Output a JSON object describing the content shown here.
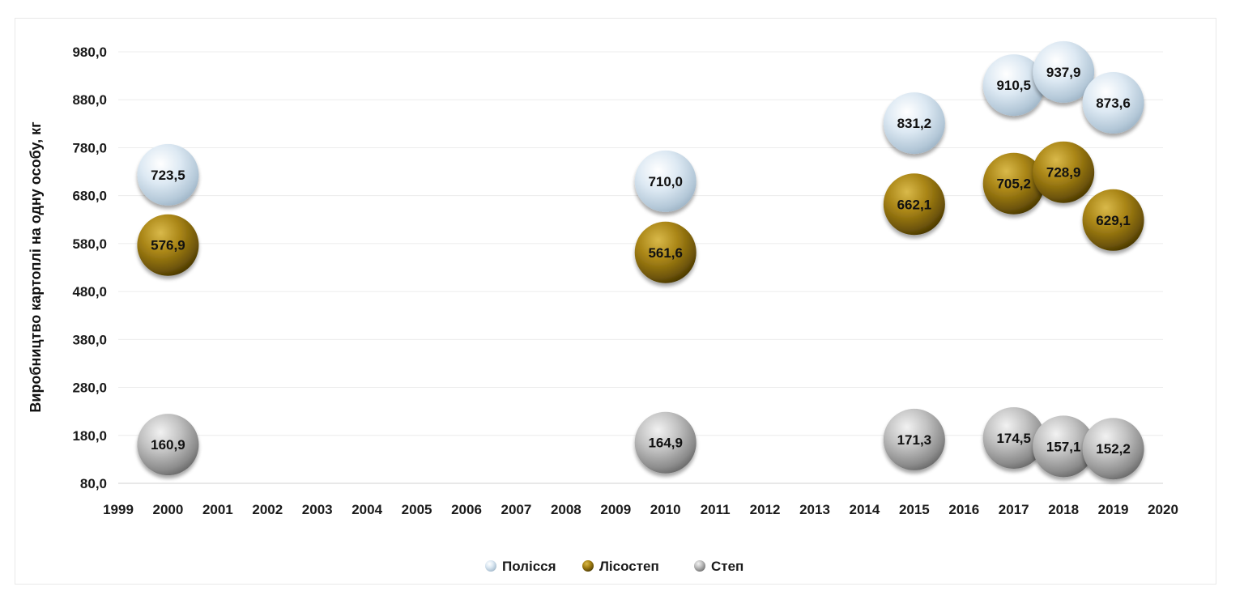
{
  "chart_data": {
    "type": "scatter",
    "title": "",
    "xlabel": "",
    "ylabel": "Виробництво картоплі на одну особу, кг",
    "xlim": [
      1999,
      2020
    ],
    "ylim": [
      80,
      980
    ],
    "x_ticks": [
      "1999",
      "2000",
      "2001",
      "2002",
      "2003",
      "2004",
      "2005",
      "2006",
      "2007",
      "2008",
      "2009",
      "2010",
      "2011",
      "2012",
      "2013",
      "2014",
      "2015",
      "2016",
      "2017",
      "2018",
      "2019",
      "2020"
    ],
    "y_ticks": [
      "80,0",
      "180,0",
      "280,0",
      "380,0",
      "480,0",
      "580,0",
      "680,0",
      "780,0",
      "880,0",
      "980,0"
    ],
    "grid": true,
    "legend_position": "bottom",
    "series": [
      {
        "name": "Полісся",
        "color": "#cfe0ee",
        "points": [
          {
            "x": 2000,
            "y": 723.5,
            "label": "723,5"
          },
          {
            "x": 2010,
            "y": 710.0,
            "label": "710,0"
          },
          {
            "x": 2015,
            "y": 831.2,
            "label": "831,2"
          },
          {
            "x": 2017,
            "y": 910.5,
            "label": "910,5"
          },
          {
            "x": 2018,
            "y": 937.9,
            "label": "937,9"
          },
          {
            "x": 2019,
            "y": 873.6,
            "label": "873,6"
          }
        ]
      },
      {
        "name": "Лісостеп",
        "color": "#8a6d12",
        "points": [
          {
            "x": 2000,
            "y": 576.9,
            "label": "576,9"
          },
          {
            "x": 2010,
            "y": 561.6,
            "label": "561,6"
          },
          {
            "x": 2015,
            "y": 662.1,
            "label": "662,1"
          },
          {
            "x": 2017,
            "y": 705.2,
            "label": "705,2"
          },
          {
            "x": 2018,
            "y": 728.9,
            "label": "728,9"
          },
          {
            "x": 2019,
            "y": 629.1,
            "label": "629,1"
          }
        ]
      },
      {
        "name": "Степ",
        "color": "#a6a6a6",
        "points": [
          {
            "x": 2000,
            "y": 160.9,
            "label": "160,9"
          },
          {
            "x": 2010,
            "y": 164.9,
            "label": "164,9"
          },
          {
            "x": 2015,
            "y": 171.3,
            "label": "171,3"
          },
          {
            "x": 2017,
            "y": 174.5,
            "label": "174,5"
          },
          {
            "x": 2018,
            "y": 157.1,
            "label": "157,1"
          },
          {
            "x": 2019,
            "y": 152.2,
            "label": "152,2"
          }
        ]
      }
    ]
  }
}
